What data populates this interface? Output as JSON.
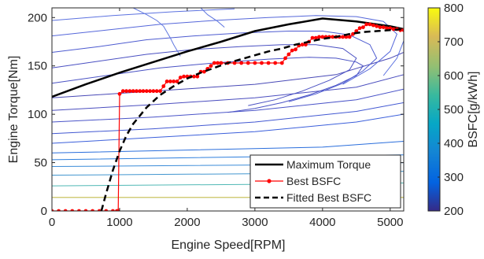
{
  "chart_data": {
    "type": "line",
    "title": "",
    "xlabel": "Engine Speed[RPM]",
    "ylabel": "Engine Torque[Nm]",
    "xlim": [
      0,
      5200
    ],
    "ylim": [
      0,
      210
    ],
    "xticks": [
      0,
      1000,
      2000,
      3000,
      4000,
      5000
    ],
    "yticks": [
      0,
      50,
      100,
      150,
      200
    ],
    "grid": false,
    "legend_position": "bottom-right",
    "colorbar": {
      "label": "BSFC[g/kWh]",
      "range": [
        200,
        800
      ],
      "ticks": [
        200,
        300,
        400,
        500,
        600,
        700,
        800
      ],
      "colormap": "parula"
    },
    "series": [
      {
        "name": "Maximum Torque",
        "style": "solid",
        "color": "#000000",
        "x": [
          0,
          500,
          1000,
          1500,
          2000,
          2500,
          3000,
          3500,
          4000,
          4500,
          5000,
          5200
        ],
        "y": [
          118,
          131,
          143,
          154,
          165,
          175,
          186,
          193,
          199,
          196,
          191,
          188
        ]
      },
      {
        "name": "Best BSFC",
        "style": "line-dot",
        "color": "#ff0000",
        "x": [
          0,
          100,
          200,
          300,
          400,
          500,
          600,
          700,
          800,
          900,
          960,
          980,
          1000,
          1050,
          1100,
          1150,
          1200,
          1250,
          1300,
          1350,
          1400,
          1450,
          1500,
          1550,
          1600,
          1650,
          1700,
          1750,
          1800,
          1850,
          1900,
          1950,
          2000,
          2050,
          2100,
          2150,
          2200,
          2250,
          2300,
          2350,
          2400,
          2450,
          2500,
          2600,
          2700,
          2800,
          2900,
          3000,
          3100,
          3200,
          3300,
          3400,
          3450,
          3500,
          3550,
          3600,
          3650,
          3700,
          3750,
          3800,
          3850,
          3900,
          3950,
          4000,
          4050,
          4100,
          4150,
          4200,
          4250,
          4300,
          4350,
          4400,
          4450,
          4500,
          4550,
          4600,
          4650,
          4700,
          4750,
          4800,
          4850,
          4900,
          4950,
          5000,
          5050,
          5100,
          5150,
          5200
        ],
        "y": [
          0,
          0,
          0,
          0,
          0,
          0,
          0,
          0,
          0,
          0,
          0,
          0,
          121,
          124,
          124,
          124,
          124,
          124,
          124,
          124,
          124,
          124,
          124,
          124,
          124,
          129,
          134,
          134,
          134,
          134,
          138,
          139,
          139,
          139,
          139,
          139,
          144,
          144,
          147,
          150,
          153,
          153,
          153,
          153,
          153,
          153,
          153,
          153,
          153,
          153,
          153,
          153,
          158,
          162,
          166,
          167,
          171,
          172,
          172,
          175,
          179,
          179,
          180,
          180,
          180,
          180,
          180,
          180,
          180,
          180,
          180,
          180,
          183,
          186,
          189,
          190,
          193,
          193,
          192,
          191,
          190,
          190,
          189,
          189,
          188,
          188,
          187,
          187
        ]
      },
      {
        "name": "Fitted Best BSFC",
        "style": "dashed",
        "color": "#000000",
        "x": [
          730,
          800,
          900,
          1000,
          1100,
          1200,
          1400,
          1600,
          1800,
          2000,
          2200,
          2400,
          2600,
          2800,
          3000,
          3200,
          3400,
          3600,
          3800,
          4000,
          4200,
          4400,
          4600,
          4800,
          5000,
          5200
        ],
        "y": [
          0,
          18,
          42,
          62,
          78,
          90,
          107,
          120,
          129,
          137,
          143,
          148,
          153,
          157,
          161,
          165,
          168,
          172,
          175,
          178,
          180,
          183,
          185,
          186,
          187,
          188
        ]
      }
    ],
    "contours": [
      {
        "color": "#48a7c4",
        "x": [
          0,
          5200
        ],
        "y": [
          14,
          14
        ],
        "kind": "line"
      },
      {
        "color": "#e8c94a",
        "x": [
          0,
          5200
        ],
        "y": [
          14,
          14
        ],
        "kind": "line"
      },
      {
        "color": "#50b8b5",
        "x": [
          0,
          2000,
          4000,
          5200
        ],
        "y": [
          26,
          27,
          28,
          29
        ],
        "kind": "line"
      },
      {
        "color": "#4296cf",
        "x": [
          0,
          2000,
          4000,
          5200
        ],
        "y": [
          37,
          38,
          39,
          41
        ],
        "kind": "line"
      },
      {
        "color": "#3a8bd8",
        "x": [
          0,
          2000,
          4000,
          5200
        ],
        "y": [
          46,
          47,
          48,
          50
        ],
        "kind": "line"
      },
      {
        "color": "#2f7fdd",
        "x": [
          0,
          2000,
          4000,
          5200
        ],
        "y": [
          53,
          55,
          57,
          58
        ],
        "kind": "line"
      },
      {
        "color": "#2a6edc",
        "x": [
          0,
          2000,
          4000,
          5200
        ],
        "y": [
          60,
          63,
          66,
          72
        ],
        "kind": "line"
      },
      {
        "color": "#3b5fdb",
        "x": [
          0,
          1500,
          3000,
          4500,
          5200
        ],
        "y": [
          70,
          76,
          82,
          92,
          100
        ],
        "kind": "line"
      },
      {
        "color": "#4258d2",
        "x": [
          0,
          1500,
          3000,
          4500,
          5200
        ],
        "y": [
          80,
          85,
          92,
          103,
          112
        ],
        "kind": "line"
      },
      {
        "color": "#4a54c8",
        "x": [
          0,
          1500,
          3000,
          4500,
          5200
        ],
        "y": [
          92,
          97,
          104,
          115,
          126
        ],
        "kind": "line"
      },
      {
        "color": "#4b4ebf",
        "x": [
          0,
          1500,
          3000,
          4500,
          5200
        ],
        "y": [
          104,
          110,
          117,
          128,
          141
        ],
        "kind": "line"
      },
      {
        "color": "#4849b6",
        "x": [
          0,
          1500,
          3000,
          4200,
          5000,
          5200
        ],
        "y": [
          117,
          124,
          131,
          141,
          158,
          164
        ],
        "kind": "line"
      },
      {
        "color": "#4a52c4",
        "x": [
          0,
          800,
          1600,
          2400,
          3200,
          3800,
          4200,
          4500,
          4600,
          4500,
          4200,
          3800,
          3400,
          3000,
          2600
        ],
        "y": [
          132,
          140,
          148,
          153,
          157,
          159,
          158,
          154,
          150,
          140,
          130,
          120,
          112,
          106,
          102
        ],
        "kind": "line"
      },
      {
        "color": "#4a50c2",
        "x": [
          0,
          700,
          1400,
          2100,
          2800,
          3400,
          3900,
          4300,
          4500,
          4400,
          4100,
          3700,
          3300,
          2900
        ],
        "y": [
          148,
          155,
          162,
          167,
          170,
          172,
          172,
          168,
          158,
          146,
          135,
          124,
          115,
          109
        ],
        "kind": "line"
      },
      {
        "color": "#4d5bd0",
        "x": [
          0,
          700,
          1400,
          2100,
          2800,
          3500,
          4000,
          4400,
          4700,
          4800,
          4600,
          4300,
          3900,
          3500
        ],
        "y": [
          164,
          170,
          177,
          181,
          184,
          186,
          186,
          182,
          172,
          158,
          145,
          132,
          121,
          113
        ],
        "kind": "line"
      },
      {
        "color": "#5567da",
        "x": [
          0,
          800,
          1600,
          2400,
          3200,
          3900,
          4500,
          4900,
          5100,
          5000,
          4700,
          4300
        ],
        "y": [
          181,
          187,
          193,
          197,
          200,
          202,
          201,
          196,
          183,
          165,
          147,
          131
        ],
        "kind": "line"
      },
      {
        "color": "#5c72e0",
        "x": [
          0,
          900,
          1800,
          2700
        ],
        "y": [
          197,
          202,
          206,
          209
        ],
        "kind": "line"
      },
      {
        "color": "#5c72e0",
        "x": [
          5200,
          5100,
          4900
        ],
        "y": [
          176,
          158,
          140
        ],
        "kind": "line"
      },
      {
        "color": "#6078e0",
        "x": [
          1200,
          1400,
          1550,
          1650,
          1700,
          1750,
          1800,
          1900
        ],
        "y": [
          210,
          203,
          197,
          191,
          185,
          179,
          172,
          160
        ],
        "kind": "line"
      },
      {
        "color": "#6078e0",
        "x": [
          2200,
          2300,
          2450,
          2550
        ],
        "y": [
          210,
          203,
          196,
          190
        ],
        "kind": "line"
      }
    ]
  }
}
